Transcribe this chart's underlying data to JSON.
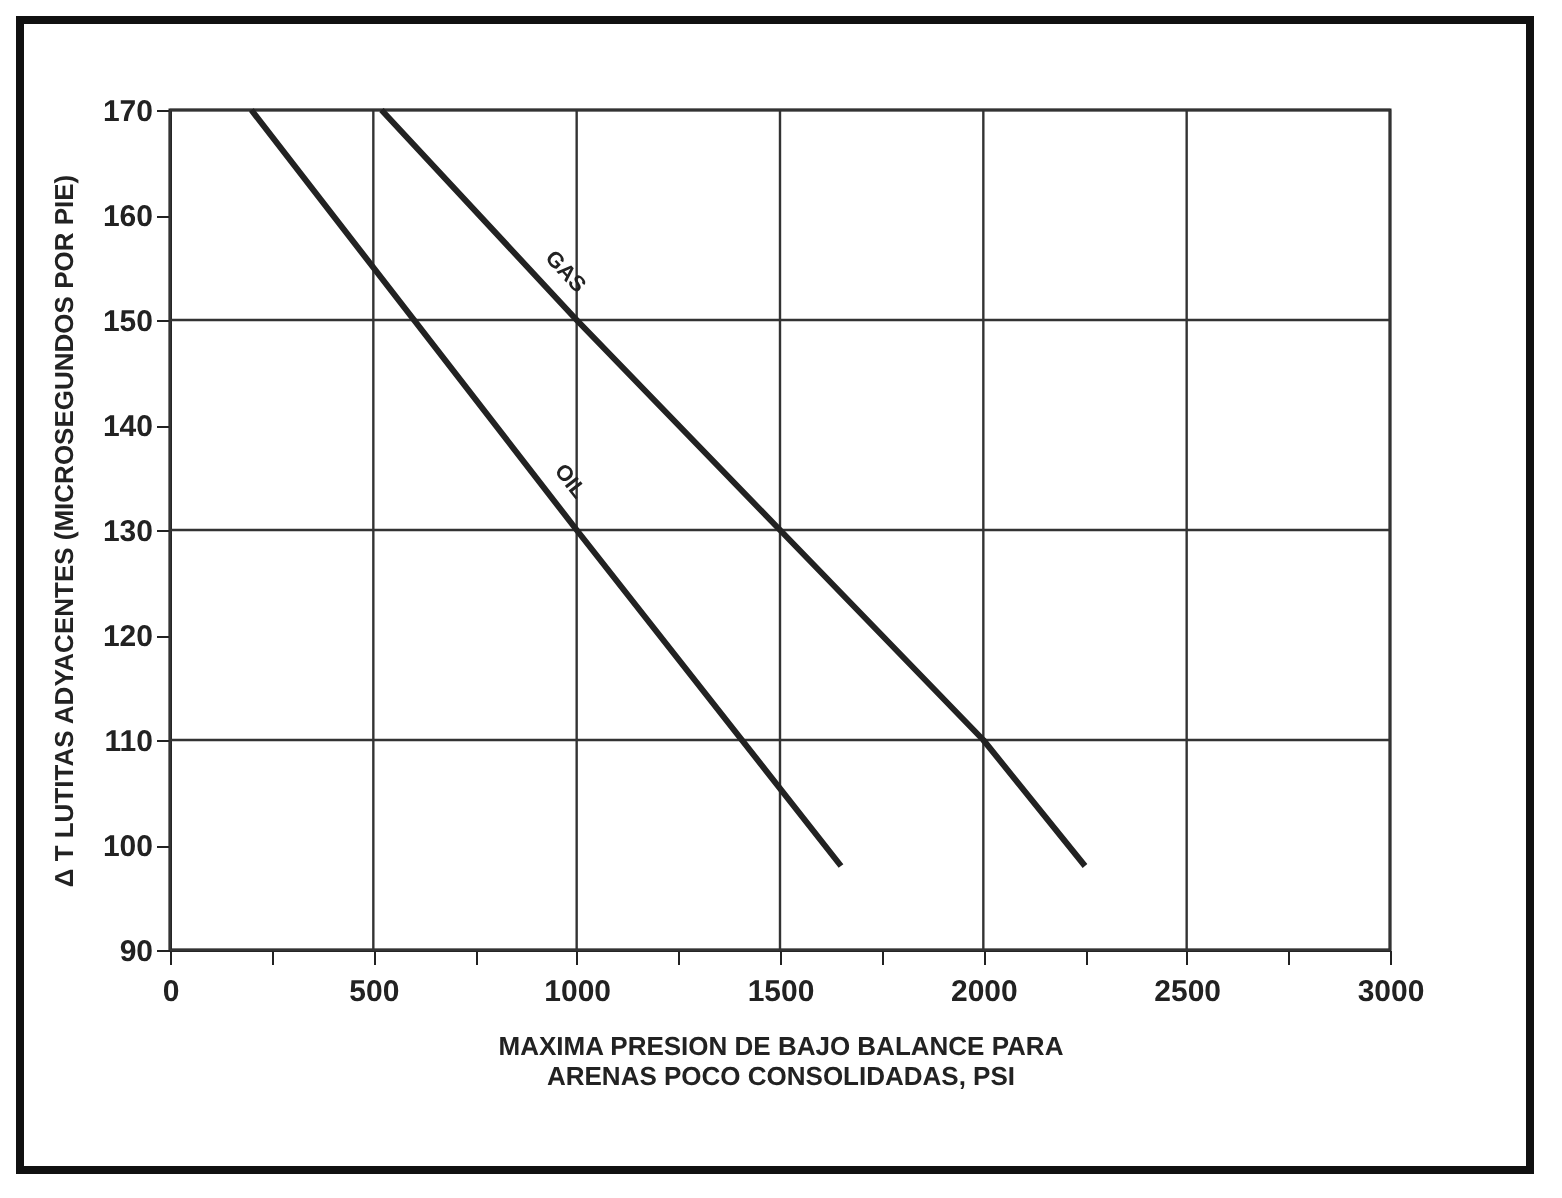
{
  "chart_data": {
    "type": "line",
    "xlabel": "MAXIMA PRESION DE BAJO BALANCE PARA\nARENAS POCO CONSOLIDADAS, PSI",
    "ylabel": "Δ T LUTITAS ADYACENTES (MICROSEGUNDOS POR PIE)",
    "series": [
      {
        "name": "OIL",
        "color": "#222222",
        "x": [
          200,
          1000,
          1650
        ],
        "values": [
          170,
          130,
          98
        ]
      },
      {
        "name": "GAS",
        "color": "#222222",
        "x": [
          520,
          1000,
          1500,
          2000,
          2250
        ],
        "values": [
          170,
          150,
          130,
          110,
          98
        ]
      }
    ],
    "xlim": [
      0,
      3000
    ],
    "ylim": [
      90,
      170
    ],
    "xticks": [
      0,
      {
        "value": 250,
        "label": null
      },
      500,
      {
        "value": 750,
        "label": null
      },
      1000,
      {
        "value": 1250,
        "label": null
      },
      1500,
      {
        "value": 1750,
        "label": null
      },
      2000,
      {
        "value": 2250,
        "label": null
      },
      2500,
      {
        "value": 2750,
        "label": null
      },
      3000
    ],
    "yticks": [
      90,
      100,
      110,
      120,
      130,
      140,
      150,
      160,
      170
    ],
    "grid": true,
    "marker": "none",
    "line_style": "solid"
  }
}
